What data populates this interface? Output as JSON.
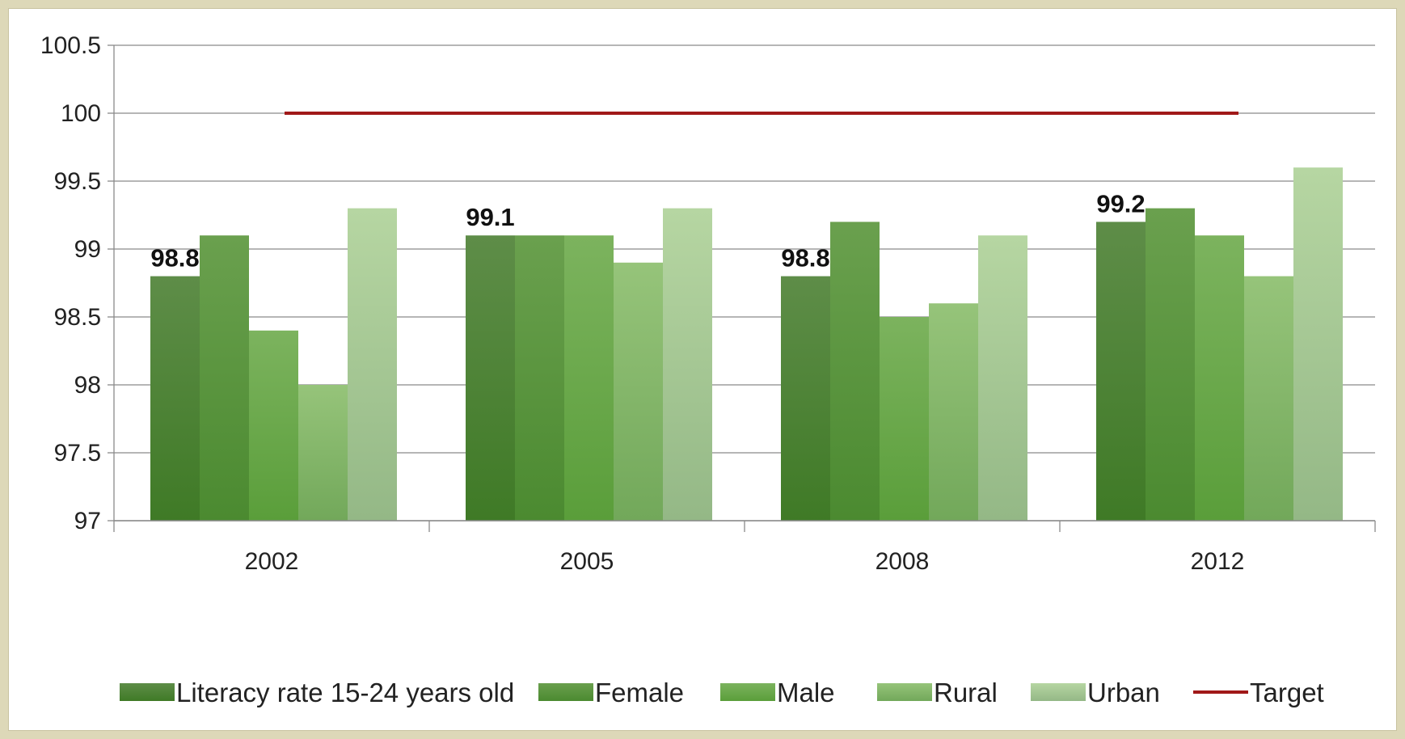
{
  "chart_data": {
    "type": "bar",
    "categories": [
      "2002",
      "2005",
      "2008",
      "2012"
    ],
    "series": [
      {
        "name": "Literacy rate 15-24 years old",
        "values": [
          98.8,
          99.1,
          98.8,
          99.2
        ],
        "color_top": "#5e8d48",
        "color_bottom": "#3f7a26"
      },
      {
        "name": "Female",
        "values": [
          99.1,
          99.1,
          99.2,
          99.3
        ],
        "color_top": "#6aa04e",
        "color_bottom": "#4b8a30"
      },
      {
        "name": "Male",
        "values": [
          98.4,
          99.1,
          98.5,
          99.1
        ],
        "color_top": "#7cb35e",
        "color_bottom": "#5a9e3a"
      },
      {
        "name": "Rural",
        "values": [
          98.0,
          98.9,
          98.6,
          98.8
        ],
        "color_top": "#96c47a",
        "color_bottom": "#72a85a"
      },
      {
        "name": "Urban",
        "values": [
          99.3,
          99.3,
          99.1,
          99.6
        ],
        "color_top": "#b6d6a2",
        "color_bottom": "#94b886"
      }
    ],
    "target": {
      "name": "Target",
      "value": 100,
      "color": "#a01818"
    },
    "data_labels": [
      "98.8",
      "99.1",
      "98.8",
      "99.2"
    ],
    "yticks": [
      "97",
      "97.5",
      "98",
      "98.5",
      "99",
      "99.5",
      "100",
      "100.5"
    ],
    "ylim": [
      97,
      100.5
    ],
    "grid": true,
    "legend_position": "bottom"
  }
}
